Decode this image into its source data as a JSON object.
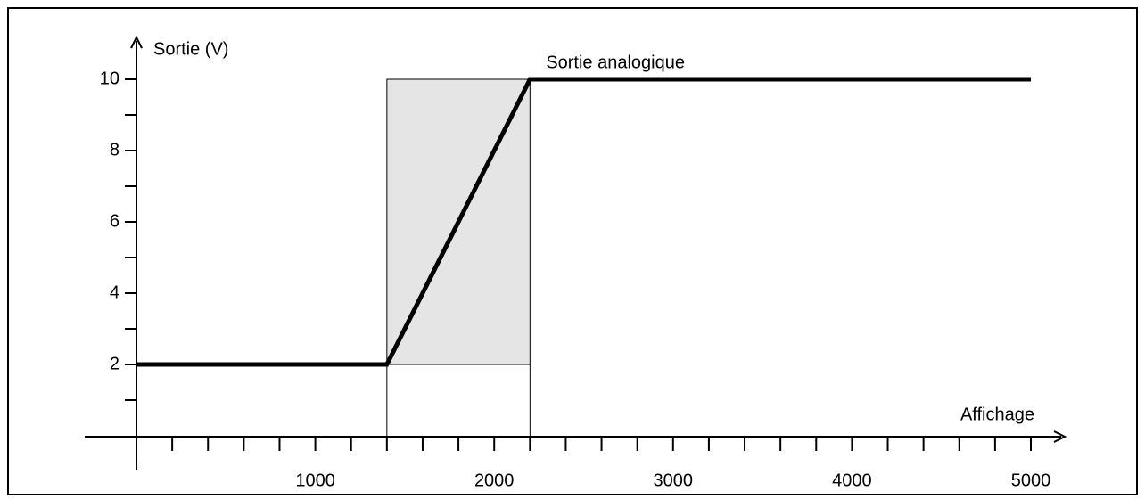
{
  "chart_data": {
    "type": "line",
    "x_label": "Affichage",
    "y_label": "Sortie (V)",
    "annotation": "Sortie analogique",
    "series": [
      {
        "name": "Sortie analogique",
        "color": "#000000",
        "x": [
          0,
          1400,
          2200,
          5000
        ],
        "values": [
          2,
          2,
          10,
          10
        ]
      }
    ],
    "xlim": [
      0,
      5000
    ],
    "xticks": [
      1000,
      2000,
      3000,
      4000,
      5000
    ],
    "xminorticks": [
      200,
      400,
      600,
      800,
      1200,
      1400,
      1600,
      1800,
      2200,
      2400,
      2600,
      2800,
      3200,
      3400,
      3600,
      3800,
      4200,
      4400,
      4600,
      4800
    ],
    "ylim": [
      0,
      10
    ],
    "yticks": [
      2,
      4,
      6,
      8,
      10
    ],
    "yminorticks": [
      1,
      3,
      5,
      7,
      9
    ],
    "shade_color": "#e5e5e5"
  }
}
